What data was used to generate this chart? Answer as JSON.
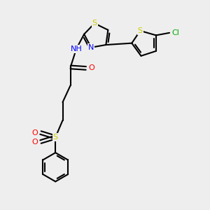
{
  "bg_color": "#eeeeee",
  "bond_color": "#000000",
  "S_color": "#cccc00",
  "N_color": "#0000ff",
  "O_color": "#ff0000",
  "Cl_color": "#00aa00",
  "line_width": 1.5,
  "fig_w": 3.0,
  "fig_h": 3.0,
  "dpi": 100,
  "xlim": [
    0,
    10
  ],
  "ylim": [
    0,
    10
  ]
}
